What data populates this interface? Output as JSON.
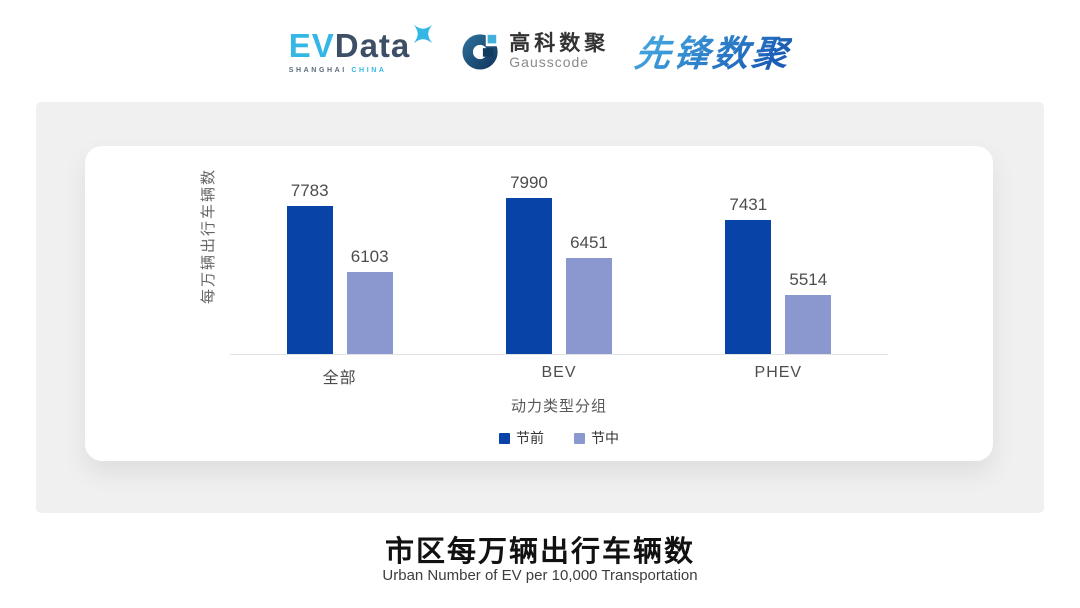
{
  "header": {
    "evdata": {
      "ev": "EV",
      "data": "Data",
      "sub_left": "SHANGHAI",
      "sub_right": "CHINA"
    },
    "gausscode": {
      "cn": "高科数聚",
      "en": "Gausscode"
    },
    "xianfeng": {
      "text": "先锋数聚"
    }
  },
  "icons": {
    "evdata-sparkle": "four-point-star",
    "gausscode-mark": "g-ring-with-dot"
  },
  "colors": {
    "evdata-blue": "#35b7e6",
    "evdata-navy": "#3d4f66",
    "gausscode-navy": "#1d4e79",
    "gausscode-cyan": "#41b0dd",
    "xianfeng-light": "#3fa0dc",
    "xianfeng-dark": "#1b5cb5",
    "panel-gray": "#f0f0f1"
  },
  "chart_data": {
    "type": "bar",
    "categories": [
      "全部",
      "BEV",
      "PHEV"
    ],
    "series": [
      {
        "name": "节前",
        "values": [
          7783,
          7990,
          7431
        ],
        "color": "#0843a8"
      },
      {
        "name": "节中",
        "values": [
          6103,
          6451,
          5514
        ],
        "color": "#8b97cf"
      }
    ],
    "ylabel": "每万辆出行车辆数",
    "xlabel": "动力类型分组",
    "ylim": [
      4000,
      8800
    ],
    "grid": false,
    "legend_position": "bottom",
    "value_labels": true,
    "title": "市区每万辆出行车辆数",
    "subtitle": "Urban Number of EV per 10,000 Transportation"
  }
}
